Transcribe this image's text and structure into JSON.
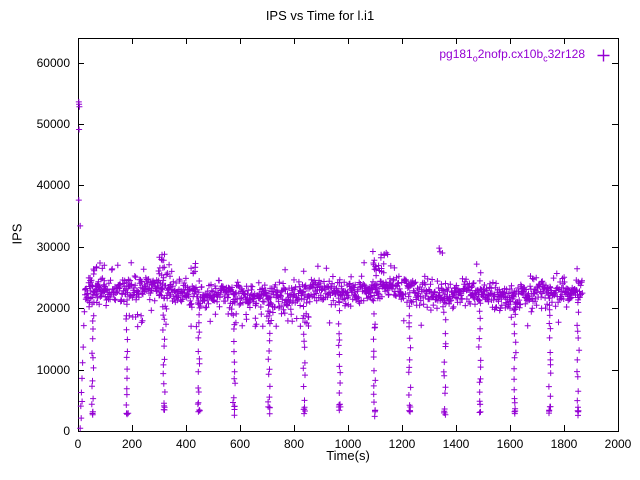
{
  "figure": {
    "background": "#ffffff"
  },
  "chart_data": {
    "type": "scatter",
    "title": "IPS vs Time for l.i1",
    "xlabel": "Time(s)",
    "ylabel": "IPS",
    "xlim": [
      0,
      2000
    ],
    "ylim": [
      0,
      64000
    ],
    "xticks": [
      0,
      200,
      400,
      600,
      800,
      1000,
      1200,
      1400,
      1600,
      1800,
      2000
    ],
    "yticks": [
      0,
      10000,
      20000,
      30000,
      40000,
      50000,
      60000
    ],
    "grid": false,
    "legend_position": "top-right-inside",
    "seed": 1337,
    "series": [
      {
        "name": "pg181_o2nofp.cx10b_c32r128",
        "label_parts": [
          {
            "text": "pg181"
          },
          {
            "text": "o",
            "sub": true
          },
          {
            "text": "2nofp.cx10b"
          },
          {
            "text": "c",
            "sub": true
          },
          {
            "text": "32r128"
          }
        ],
        "color": "#9400d3",
        "marker": "plus",
        "marker_half_px": 3,
        "band": {
          "x_start": 26,
          "x_end": 1868,
          "step": 1.5,
          "center": 22600,
          "sd": 1050,
          "slow_amp": 450,
          "low_p": 0.013,
          "low_min": 16800,
          "low_max": 20200,
          "high_p": 0.012,
          "high_min": 25600,
          "high_max": 27600
        },
        "ramp": {
          "x_start": 8,
          "x_end": 26,
          "y_start": 1600,
          "y_end": 21500,
          "n": 9
        },
        "outliers": [
          [
            3,
            53600
          ],
          [
            4,
            53200
          ],
          [
            5,
            52800
          ],
          [
            4,
            49100
          ],
          [
            3,
            37600
          ],
          [
            8,
            33400
          ],
          [
            12,
            2100
          ],
          [
            15,
            4800
          ]
        ],
        "clusters": [
          {
            "x": 70,
            "w": 30,
            "ymin": 23500,
            "ymax": 27200,
            "n": 18
          },
          {
            "x": 320,
            "w": 22,
            "ymin": 25200,
            "ymax": 29600,
            "n": 16
          },
          {
            "x": 430,
            "w": 12,
            "ymin": 25000,
            "ymax": 28000,
            "n": 6
          },
          {
            "x": 1120,
            "w": 28,
            "ymin": 25200,
            "ymax": 30600,
            "n": 18
          },
          {
            "x": 1345,
            "w": 8,
            "ymin": 28500,
            "ymax": 30100,
            "n": 3
          },
          {
            "x": 240,
            "w": 50,
            "ymin": 17600,
            "ymax": 19800,
            "n": 7
          },
          {
            "x": 700,
            "w": 160,
            "ymin": 16800,
            "ymax": 19800,
            "n": 26
          },
          {
            "x": 1650,
            "w": 120,
            "ymin": 18200,
            "ymax": 20300,
            "n": 10
          }
        ],
        "dips": [
          {
            "x": 55,
            "min": 2600
          },
          {
            "x": 182,
            "min": 2300
          },
          {
            "x": 318,
            "min": 3000
          },
          {
            "x": 448,
            "min": 3200
          },
          {
            "x": 578,
            "min": 2700
          },
          {
            "x": 708,
            "min": 3000
          },
          {
            "x": 838,
            "min": 2400
          },
          {
            "x": 968,
            "min": 3300
          },
          {
            "x": 1098,
            "min": 2800
          },
          {
            "x": 1228,
            "min": 3100
          },
          {
            "x": 1358,
            "min": 2600
          },
          {
            "x": 1488,
            "min": 3000
          },
          {
            "x": 1618,
            "min": 2500
          },
          {
            "x": 1748,
            "min": 2900
          },
          {
            "x": 1852,
            "min": 2200
          }
        ]
      }
    ]
  }
}
